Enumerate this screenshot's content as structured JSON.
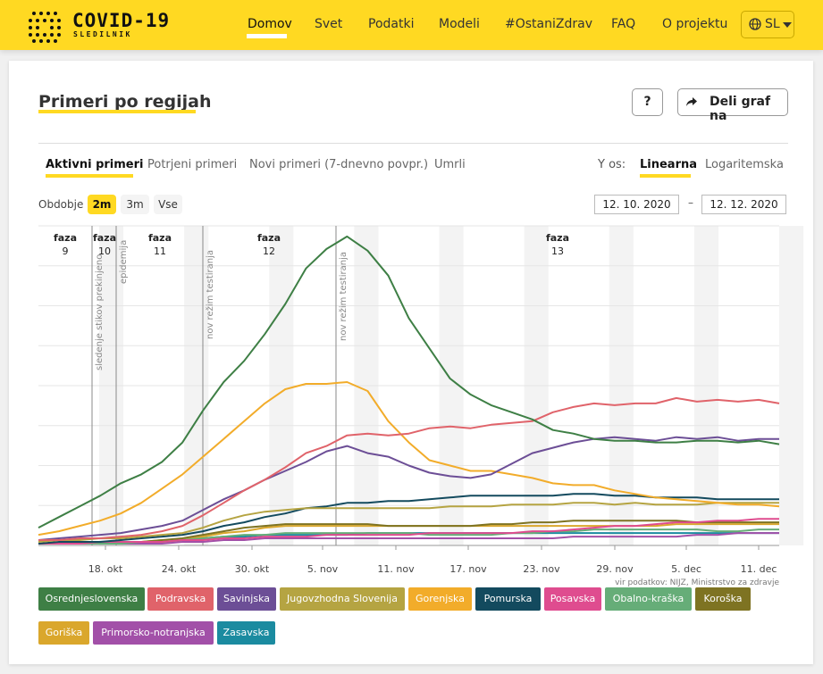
{
  "header": {
    "logo_title": "COVID-19",
    "logo_subtitle": "SLEDILNIK",
    "nav": [
      "Domov",
      "Svet",
      "Podatki",
      "Modeli",
      "#OstaniZdrav",
      "FAQ",
      "O projektu"
    ],
    "active_nav": "Domov",
    "language": "SL"
  },
  "card": {
    "title": "Primeri po regijah",
    "help_label": "?",
    "share_label": "Deli graf na"
  },
  "tabs": [
    "Aktivni primeri",
    "Potrjeni primeri",
    "Novi primeri (7-dnevno povpr.)",
    "Umrli"
  ],
  "active_tab": "Aktivni primeri",
  "yaxis": {
    "label": "Y os:",
    "options": [
      "Linearna",
      "Logaritemska"
    ],
    "active": "Linearna"
  },
  "period": {
    "label": "Obdobje",
    "options": [
      "2m",
      "3m",
      "Vse"
    ],
    "active": "2m",
    "from": "12. 10. 2020",
    "dash": "–",
    "to": "12. 12. 2020"
  },
  "colors": {
    "accent": "#ffd922"
  },
  "chart_data": {
    "type": "line",
    "x_tick_labels": [
      "18. okt",
      "24. okt",
      "30. okt",
      "5. nov",
      "11. nov",
      "17. nov",
      "23. nov",
      "29. nov",
      "5. dec",
      "11. dec"
    ],
    "source": "vir podatkov: NIJZ, Ministrstvo za zdravje",
    "phases": [
      {
        "label": "faza",
        "num": "9"
      },
      {
        "label": "faza",
        "num": "10"
      },
      {
        "label": "faza",
        "num": "11"
      },
      {
        "label": "faza",
        "num": "12"
      },
      {
        "label": "faza",
        "num": "13"
      }
    ],
    "annotations": [
      "sledenje stikov prekinjeno",
      "epidemija",
      "nov režim testiranja",
      "nov režim testiranja"
    ],
    "series": [
      {
        "name": "Osrednjeslovenska",
        "color": "#3e7f45",
        "values": [
          10,
          16,
          22,
          28,
          35,
          40,
          47,
          58,
          76,
          92,
          104,
          119,
          136,
          156,
          167,
          174,
          166,
          152,
          128,
          111,
          94,
          85,
          79,
          75,
          71,
          65,
          63,
          60,
          59,
          59,
          58,
          58,
          59,
          59,
          58,
          59,
          57
        ]
      },
      {
        "name": "Podravska",
        "color": "#e0636a",
        "values": [
          3,
          3,
          4,
          4,
          5,
          6,
          8,
          11,
          17,
          24,
          31,
          37,
          44,
          52,
          56,
          62,
          63,
          62,
          63,
          66,
          67,
          66,
          68,
          69,
          70,
          75,
          78,
          80,
          79,
          80,
          80,
          83,
          81,
          82,
          81,
          82,
          80
        ]
      },
      {
        "name": "Savinjska",
        "color": "#6c4e96",
        "values": [
          3,
          4,
          5,
          6,
          7,
          9,
          11,
          14,
          20,
          26,
          31,
          37,
          42,
          47,
          53,
          56,
          52,
          50,
          45,
          41,
          39,
          38,
          40,
          46,
          52,
          55,
          58,
          60,
          61,
          60,
          59,
          61,
          60,
          61,
          59,
          60,
          60
        ]
      },
      {
        "name": "Jugovzhodna Slovenija",
        "color": "#b5a442",
        "values": [
          2,
          3,
          3,
          4,
          4,
          5,
          6,
          7,
          10,
          14,
          17,
          19,
          20,
          21,
          21,
          21,
          21,
          21,
          21,
          21,
          22,
          22,
          22,
          23,
          23,
          23,
          24,
          24,
          23,
          24,
          23,
          23,
          23,
          24,
          24,
          24,
          24
        ]
      },
      {
        "name": "Gorenjska",
        "color": "#f2ac2a",
        "values": [
          6,
          8,
          11,
          14,
          18,
          24,
          32,
          40,
          50,
          60,
          70,
          80,
          88,
          91,
          91,
          92,
          87,
          70,
          58,
          48,
          45,
          42,
          42,
          40,
          38,
          35,
          34,
          34,
          31,
          29,
          27,
          26,
          25,
          24,
          23,
          23,
          22
        ]
      },
      {
        "name": "Pomurska",
        "color": "#134a5e",
        "values": [
          1,
          2,
          2,
          2,
          3,
          4,
          5,
          6,
          8,
          11,
          13,
          16,
          18,
          21,
          22,
          24,
          24,
          25,
          25,
          26,
          27,
          28,
          28,
          28,
          28,
          28,
          29,
          29,
          28,
          28,
          27,
          27,
          27,
          26,
          26,
          26,
          26
        ]
      },
      {
        "name": "Posavska",
        "color": "#df4c8f",
        "values": [
          1,
          1,
          1,
          2,
          2,
          2,
          2,
          3,
          3,
          4,
          4,
          5,
          5,
          5,
          6,
          6,
          6,
          6,
          6,
          7,
          7,
          7,
          7,
          7,
          8,
          8,
          9,
          10,
          11,
          11,
          12,
          13,
          13,
          14,
          14,
          15,
          15
        ]
      },
      {
        "name": "Obalno-kraška",
        "color": "#66ad78",
        "values": [
          1,
          1,
          1,
          1,
          1,
          2,
          2,
          3,
          4,
          5,
          6,
          6,
          7,
          7,
          7,
          7,
          7,
          7,
          7,
          6,
          6,
          6,
          6,
          7,
          7,
          8,
          8,
          9,
          9,
          9,
          9,
          9,
          9,
          8,
          8,
          9,
          9
        ]
      },
      {
        "name": "Koroška",
        "color": "#7e7322",
        "values": [
          1,
          1,
          1,
          1,
          2,
          2,
          3,
          4,
          6,
          8,
          10,
          11,
          12,
          12,
          12,
          12,
          12,
          11,
          11,
          11,
          11,
          11,
          12,
          12,
          13,
          13,
          14,
          14,
          14,
          14,
          14,
          14,
          13,
          13,
          13,
          13,
          13
        ]
      },
      {
        "name": "Goriška",
        "color": "#daa72c",
        "values": [
          1,
          1,
          1,
          1,
          2,
          2,
          3,
          3,
          5,
          7,
          8,
          10,
          11,
          11,
          11,
          11,
          11,
          11,
          11,
          11,
          11,
          11,
          11,
          11,
          11,
          11,
          11,
          11,
          11,
          11,
          11,
          12,
          12,
          12,
          12,
          12,
          12
        ]
      },
      {
        "name": "Primorsko-notranjska",
        "color": "#a250a8",
        "values": [
          1,
          1,
          1,
          1,
          1,
          1,
          1,
          2,
          2,
          3,
          3,
          4,
          4,
          4,
          4,
          4,
          4,
          4,
          4,
          4,
          4,
          4,
          4,
          4,
          4,
          4,
          5,
          5,
          5,
          5,
          5,
          5,
          6,
          6,
          7,
          7,
          7
        ]
      },
      {
        "name": "Zasavska",
        "color": "#1b8ba0",
        "values": [
          1,
          1,
          1,
          1,
          2,
          2,
          2,
          3,
          4,
          5,
          5,
          6,
          6,
          6,
          6,
          6,
          7,
          7,
          7,
          7,
          7,
          7,
          7,
          7,
          7,
          7,
          7,
          7,
          7,
          7,
          7,
          7,
          7,
          7,
          7,
          7,
          7
        ]
      }
    ]
  }
}
